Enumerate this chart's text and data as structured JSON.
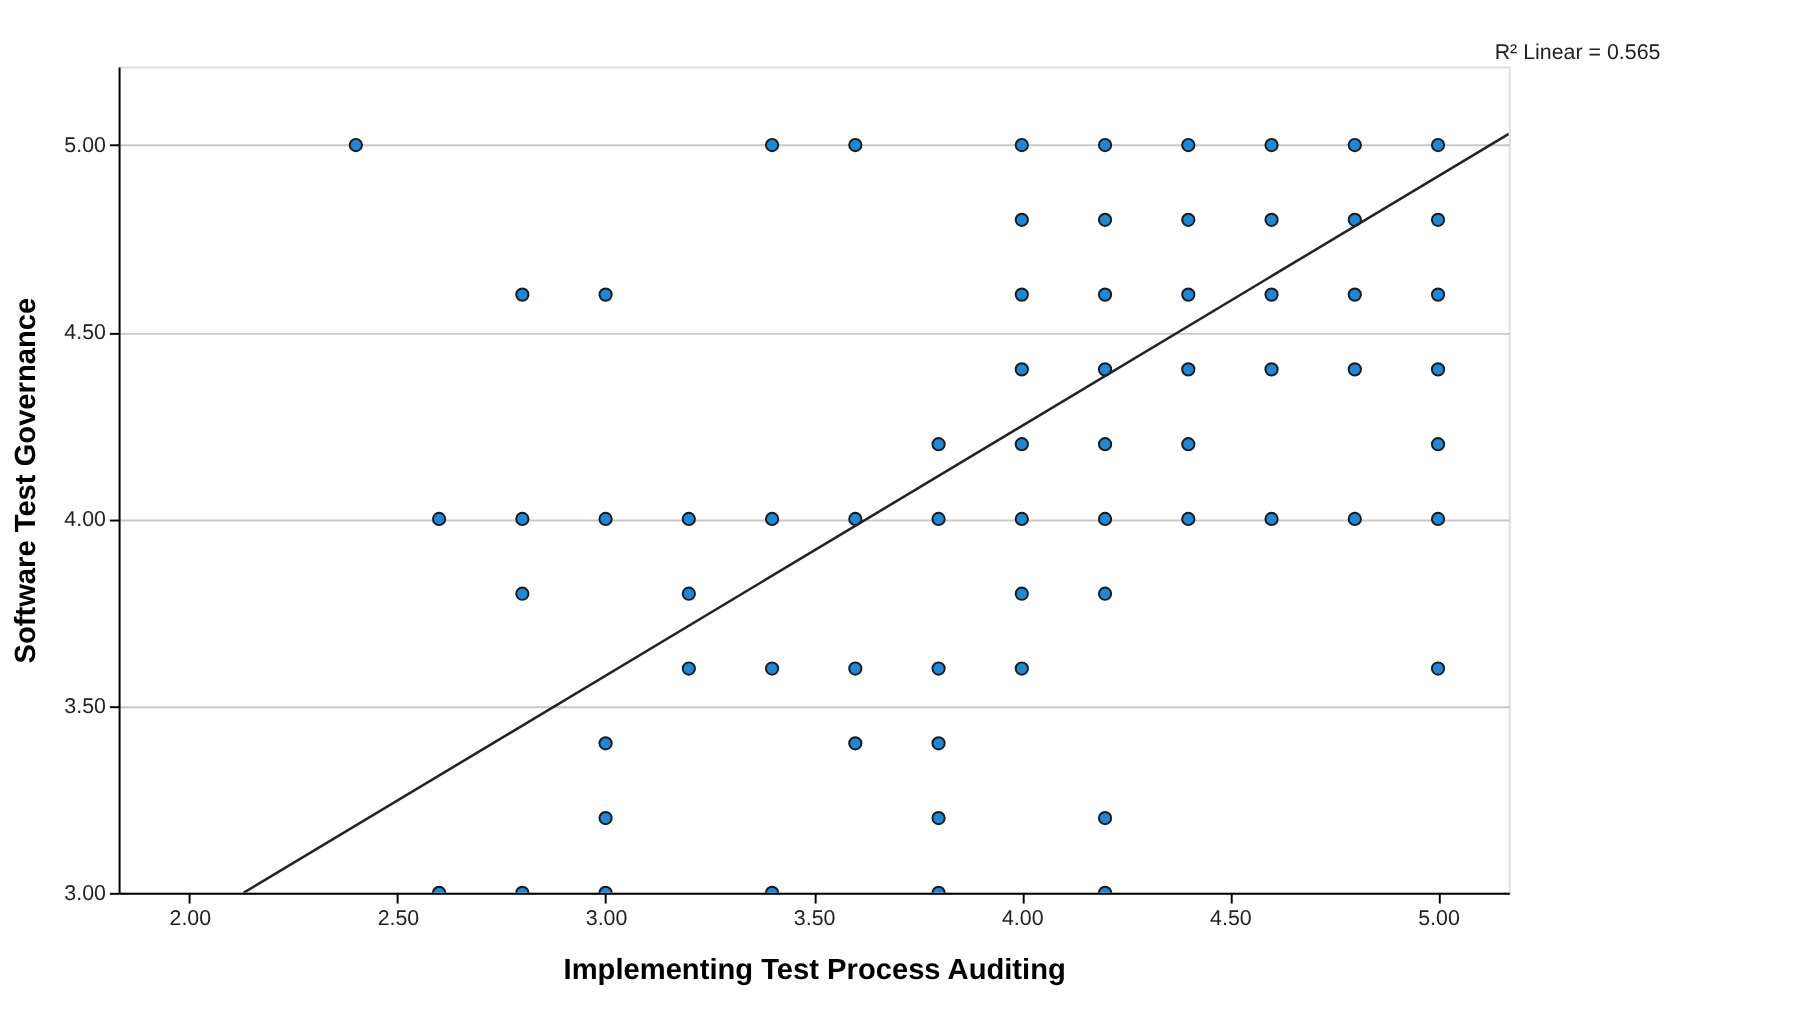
{
  "chart_data": {
    "type": "scatter",
    "xlabel": "Implementing Test Process Auditing",
    "ylabel": "Software Test Governance",
    "annotations": [
      "R² Linear = 0.565"
    ],
    "xlim": [
      1.83,
      5.17
    ],
    "ylim": [
      3.0,
      5.21
    ],
    "xticks": [
      {
        "value": 2,
        "label": "2.00"
      },
      {
        "value": 2.5,
        "label": "2.50"
      },
      {
        "value": 3,
        "label": "3.00"
      },
      {
        "value": 3.5,
        "label": "3.50"
      },
      {
        "value": 4,
        "label": "4.00"
      },
      {
        "value": 4.5,
        "label": "4.50"
      },
      {
        "value": 5,
        "label": "5.00"
      }
    ],
    "yticks": [
      {
        "value": 3,
        "label": "3.00"
      },
      {
        "value": 3.5,
        "label": "3.50"
      },
      {
        "value": 4,
        "label": "4.00"
      },
      {
        "value": 4.5,
        "label": "4.50"
      },
      {
        "value": 5,
        "label": "5.00"
      }
    ],
    "grid": "y",
    "marker": "circle",
    "series": [
      {
        "color": "#1e88d8",
        "x": [
          2.4,
          3.4,
          3.6,
          4.0,
          4.2,
          4.4,
          4.6,
          4.8,
          5.0,
          4.0,
          4.2,
          4.4,
          4.6,
          4.8,
          5.0,
          2.8,
          3.0,
          4.0,
          4.2,
          4.4,
          4.6,
          4.8,
          5.0,
          4.0,
          4.2,
          4.4,
          4.6,
          4.8,
          5.0,
          3.8,
          4.0,
          4.2,
          4.4,
          5.0,
          2.6,
          2.8,
          3.0,
          3.2,
          3.4,
          3.6,
          3.8,
          4.0,
          4.2,
          4.4,
          4.6,
          4.8,
          5.0,
          2.8,
          3.2,
          4.0,
          4.2,
          3.2,
          3.4,
          3.6,
          3.8,
          4.0,
          5.0,
          3.0,
          3.6,
          3.8,
          3.0,
          3.8,
          4.2,
          2.6,
          2.8,
          3.0,
          3.4,
          3.8,
          4.2
        ],
        "values": [
          5,
          5,
          5,
          5,
          5,
          5,
          5,
          5,
          5,
          4.8,
          4.8,
          4.8,
          4.8,
          4.8,
          4.8,
          4.6,
          4.6,
          4.6,
          4.6,
          4.6,
          4.6,
          4.6,
          4.6,
          4.4,
          4.4,
          4.4,
          4.4,
          4.4,
          4.4,
          4.2,
          4.2,
          4.2,
          4.2,
          4.2,
          4,
          4,
          4,
          4,
          4,
          4,
          4,
          4,
          4,
          4,
          4,
          4,
          4,
          3.8,
          3.8,
          3.8,
          3.8,
          3.6,
          3.6,
          3.6,
          3.6,
          3.6,
          3.6,
          3.4,
          3.4,
          3.4,
          3.2,
          3.2,
          3.2,
          3,
          3,
          3,
          3,
          3,
          3
        ]
      },
      {
        "type": "line",
        "marker": "none",
        "color": "#222222",
        "x": [
          2.13,
          5.17
        ],
        "values": [
          3.0,
          5.03
        ]
      }
    ]
  }
}
